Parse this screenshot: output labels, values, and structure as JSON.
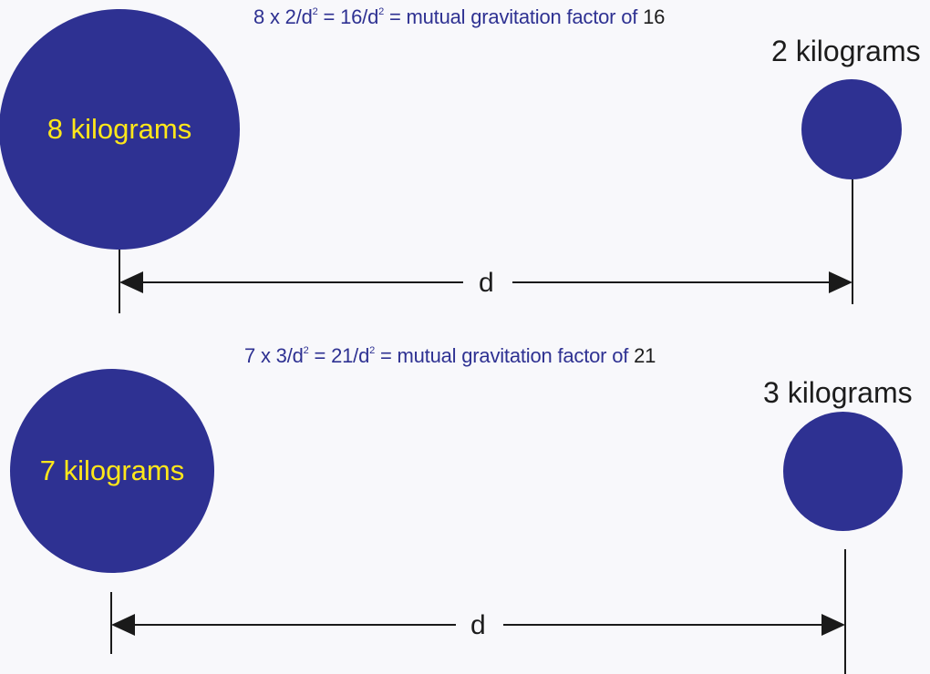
{
  "colors": {
    "mass_fill": "#2e3192",
    "equation_text": "#2e3192",
    "mass_text_inside": "#ffe71a",
    "label_text": "#1c1c1c",
    "line": "#1a1a1a"
  },
  "top": {
    "equation": {
      "a": "8",
      "x": " x ",
      "b": "2",
      "over_d": "/d",
      "exp": "2",
      "eq1": " = ",
      "num": "16",
      "eq2": " = mutual gravitation factor of ",
      "factor": "16"
    },
    "large_mass_label": "8 kilograms",
    "small_mass_label": "2 kilograms",
    "distance_label": "d"
  },
  "bottom": {
    "equation": {
      "a": "7",
      "x": " x ",
      "b": "3",
      "over_d": "/d",
      "exp": "2",
      "eq1": " = ",
      "num": "21",
      "eq2": " = mutual gravitation factor of ",
      "factor": "21"
    },
    "large_mass_label": "7 kilograms",
    "small_mass_label": "3 kilograms",
    "distance_label": "d"
  }
}
